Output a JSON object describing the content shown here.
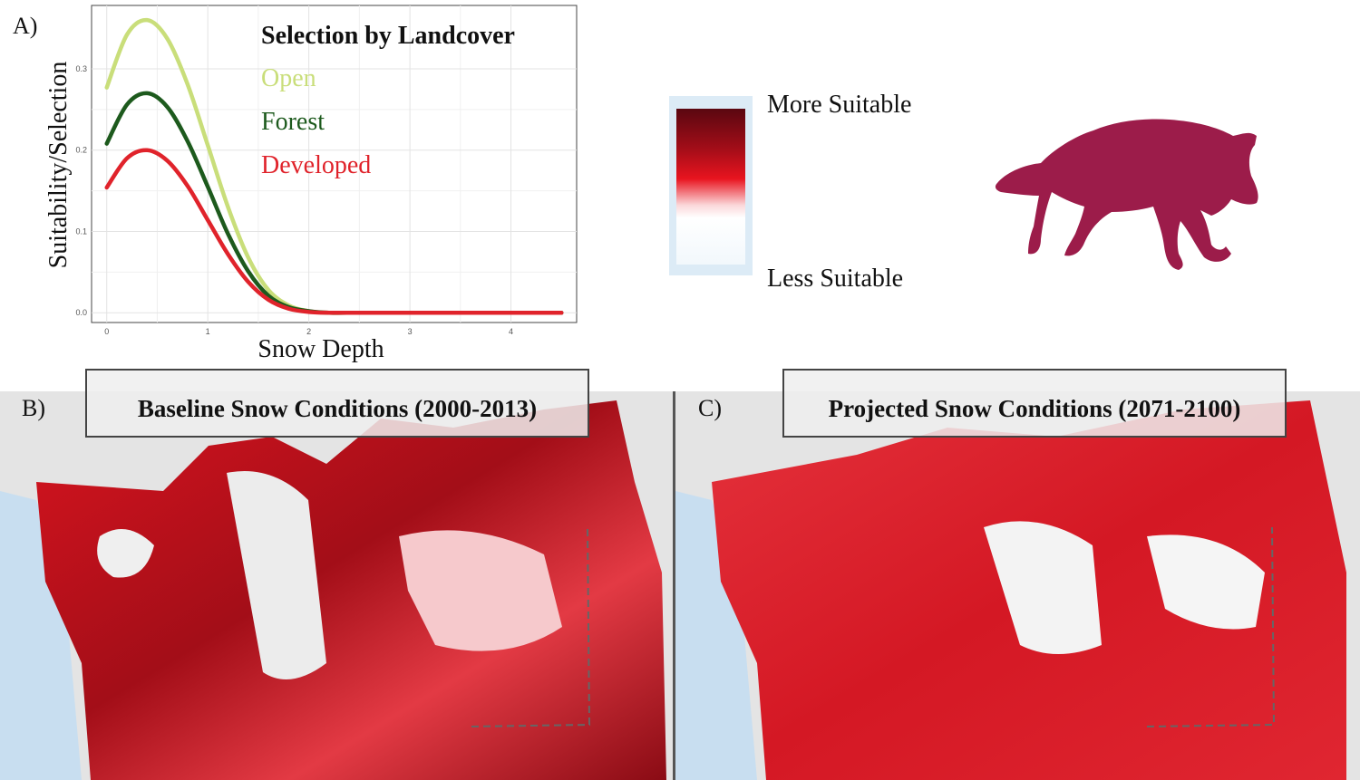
{
  "panel_a": {
    "label": "A)"
  },
  "chart_data": {
    "type": "line",
    "title": "",
    "xlabel": "Snow Depth",
    "ylabel": "Suitability/Selection",
    "xlim": [
      -0.15,
      4.65
    ],
    "ylim": [
      -0.012,
      0.378
    ],
    "x_ticks": [
      0,
      1,
      2,
      3,
      4
    ],
    "y_ticks": [
      0.0,
      0.1,
      0.2,
      0.3
    ],
    "y_tick_labels": [
      "0.0",
      "0.1",
      "0.2",
      "0.3"
    ],
    "grid": true,
    "legend_title": "Selection by Landcover",
    "legend_position": "top-right",
    "x": [
      0,
      0.2,
      0.4,
      0.6,
      0.8,
      1.0,
      1.2,
      1.4,
      1.6,
      1.8,
      2.0,
      2.2,
      2.5,
      3.0,
      3.5,
      4.0,
      4.5
    ],
    "series": [
      {
        "name": "Open",
        "color": "#c9de7a",
        "values": [
          0.277,
          0.342,
          0.36,
          0.337,
          0.281,
          0.206,
          0.13,
          0.068,
          0.028,
          0.009,
          0.002,
          0.0,
          0.0,
          0.0,
          0.0,
          0.0,
          0.0
        ]
      },
      {
        "name": "Forest",
        "color": "#1d5a1d",
        "values": [
          0.208,
          0.256,
          0.27,
          0.253,
          0.211,
          0.155,
          0.097,
          0.051,
          0.021,
          0.007,
          0.002,
          0.0,
          0.0,
          0.0,
          0.0,
          0.0,
          0.0
        ]
      },
      {
        "name": "Developed",
        "color": "#e0232b",
        "values": [
          0.154,
          0.19,
          0.2,
          0.187,
          0.156,
          0.114,
          0.072,
          0.038,
          0.016,
          0.005,
          0.001,
          0.0,
          0.0,
          0.0,
          0.0,
          0.0,
          0.0
        ]
      }
    ]
  },
  "scale": {
    "high_label": "More Suitable",
    "low_label": "Less Suitable"
  },
  "wolf": {
    "icon": "wolf-silhouette-icon",
    "color": "#9c1c4a"
  },
  "map_b": {
    "label": "B)",
    "title": "Baseline Snow Conditions (2000-2013)"
  },
  "map_c": {
    "label": "C)",
    "title": "Projected Snow Conditions (2071-2100)"
  },
  "colors": {
    "suitable_dark": "#7a0a12",
    "suitable_mid": "#d8141f",
    "water": "#c8def0",
    "terrain": "#e6e6e6"
  }
}
